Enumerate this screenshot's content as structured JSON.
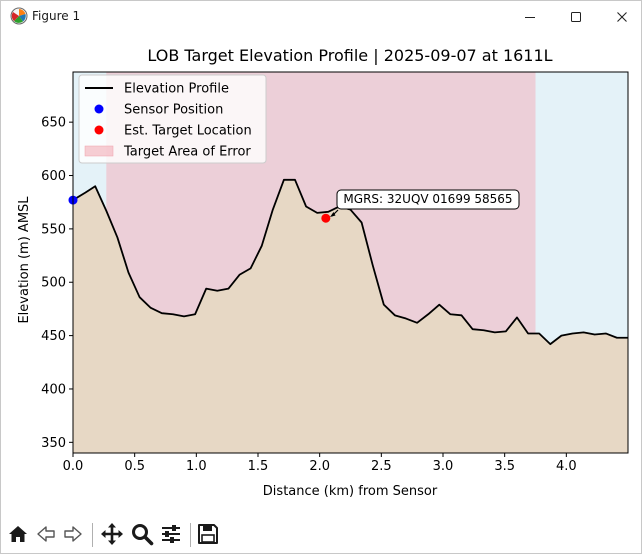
{
  "window": {
    "title": "Figure 1",
    "icons": {
      "app": "matplotlib-logo-icon",
      "minimize": "minimize-icon",
      "maximize": "maximize-icon",
      "close": "close-icon"
    }
  },
  "toolbar": {
    "buttons": [
      {
        "name": "home-button",
        "icon": "home-icon"
      },
      {
        "name": "back-button",
        "icon": "back-arrow-icon"
      },
      {
        "name": "forward-button",
        "icon": "forward-arrow-icon"
      },
      {
        "name": "pan-button",
        "icon": "pan-move-icon"
      },
      {
        "name": "zoom-button",
        "icon": "zoom-magnifier-icon"
      },
      {
        "name": "configure-subplots-button",
        "icon": "sliders-icon"
      },
      {
        "name": "save-button",
        "icon": "floppy-disk-icon"
      }
    ]
  },
  "chart_data": {
    "type": "area",
    "title": "LOB Target Elevation Profile | 2025-09-07 at 1611L",
    "xlabel": "Distance (km) from Sensor",
    "ylabel": "Elevation (m) AMSL",
    "xlim": [
      0,
      4.5
    ],
    "ylim": [
      340,
      697
    ],
    "xticks": [
      0.0,
      0.5,
      1.0,
      1.5,
      2.0,
      2.5,
      3.0,
      3.5,
      4.0
    ],
    "xtick_labels": [
      "0.0",
      "0.5",
      "1.0",
      "1.5",
      "2.0",
      "2.5",
      "3.0",
      "3.5",
      "4.0"
    ],
    "yticks": [
      350,
      400,
      450,
      500,
      550,
      600,
      650
    ],
    "ytick_labels": [
      "350",
      "400",
      "450",
      "500",
      "550",
      "600",
      "650"
    ],
    "grid": false,
    "legend_position": "upper-left",
    "background_color": "#e4f2f8",
    "error_area": {
      "x_start": 0.27,
      "x_end": 3.75,
      "color": "#eccfd8"
    },
    "fill_color": "#e7d8c5",
    "series": [
      {
        "name": "Elevation Profile",
        "color": "#000000",
        "x": [
          0.0,
          0.1,
          0.18,
          0.27,
          0.36,
          0.45,
          0.54,
          0.63,
          0.72,
          0.81,
          0.9,
          0.99,
          1.08,
          1.17,
          1.26,
          1.35,
          1.44,
          1.53,
          1.62,
          1.71,
          1.8,
          1.89,
          1.98,
          2.07,
          2.16,
          2.25,
          2.34,
          2.43,
          2.52,
          2.61,
          2.7,
          2.79,
          2.88,
          2.97,
          3.06,
          3.15,
          3.24,
          3.33,
          3.42,
          3.51,
          3.6,
          3.69,
          3.78,
          3.87,
          3.96,
          4.05,
          4.14,
          4.23,
          4.32,
          4.41,
          4.5
        ],
        "y": [
          577,
          584,
          590,
          567,
          542,
          509,
          486,
          476,
          471,
          470,
          468,
          470,
          494,
          492,
          494,
          507,
          513,
          534,
          568,
          596,
          596,
          571,
          565,
          566,
          571,
          568,
          556,
          516,
          479,
          469,
          466,
          462,
          470,
          479,
          470,
          469,
          456,
          455,
          453,
          454,
          467,
          452,
          452,
          442,
          450,
          452,
          453,
          451,
          452,
          448,
          448
        ]
      }
    ],
    "sensor_position": {
      "name": "Sensor Position",
      "x": 0.0,
      "y": 577,
      "color": "#0000ff"
    },
    "target_location": {
      "name": "Est. Target Location",
      "x": 2.05,
      "y": 560,
      "color": "#ff0000"
    },
    "error_area_label": "Target Area of Error",
    "annotation": {
      "text": "MGRS: 32UQV 01699 58565"
    }
  }
}
